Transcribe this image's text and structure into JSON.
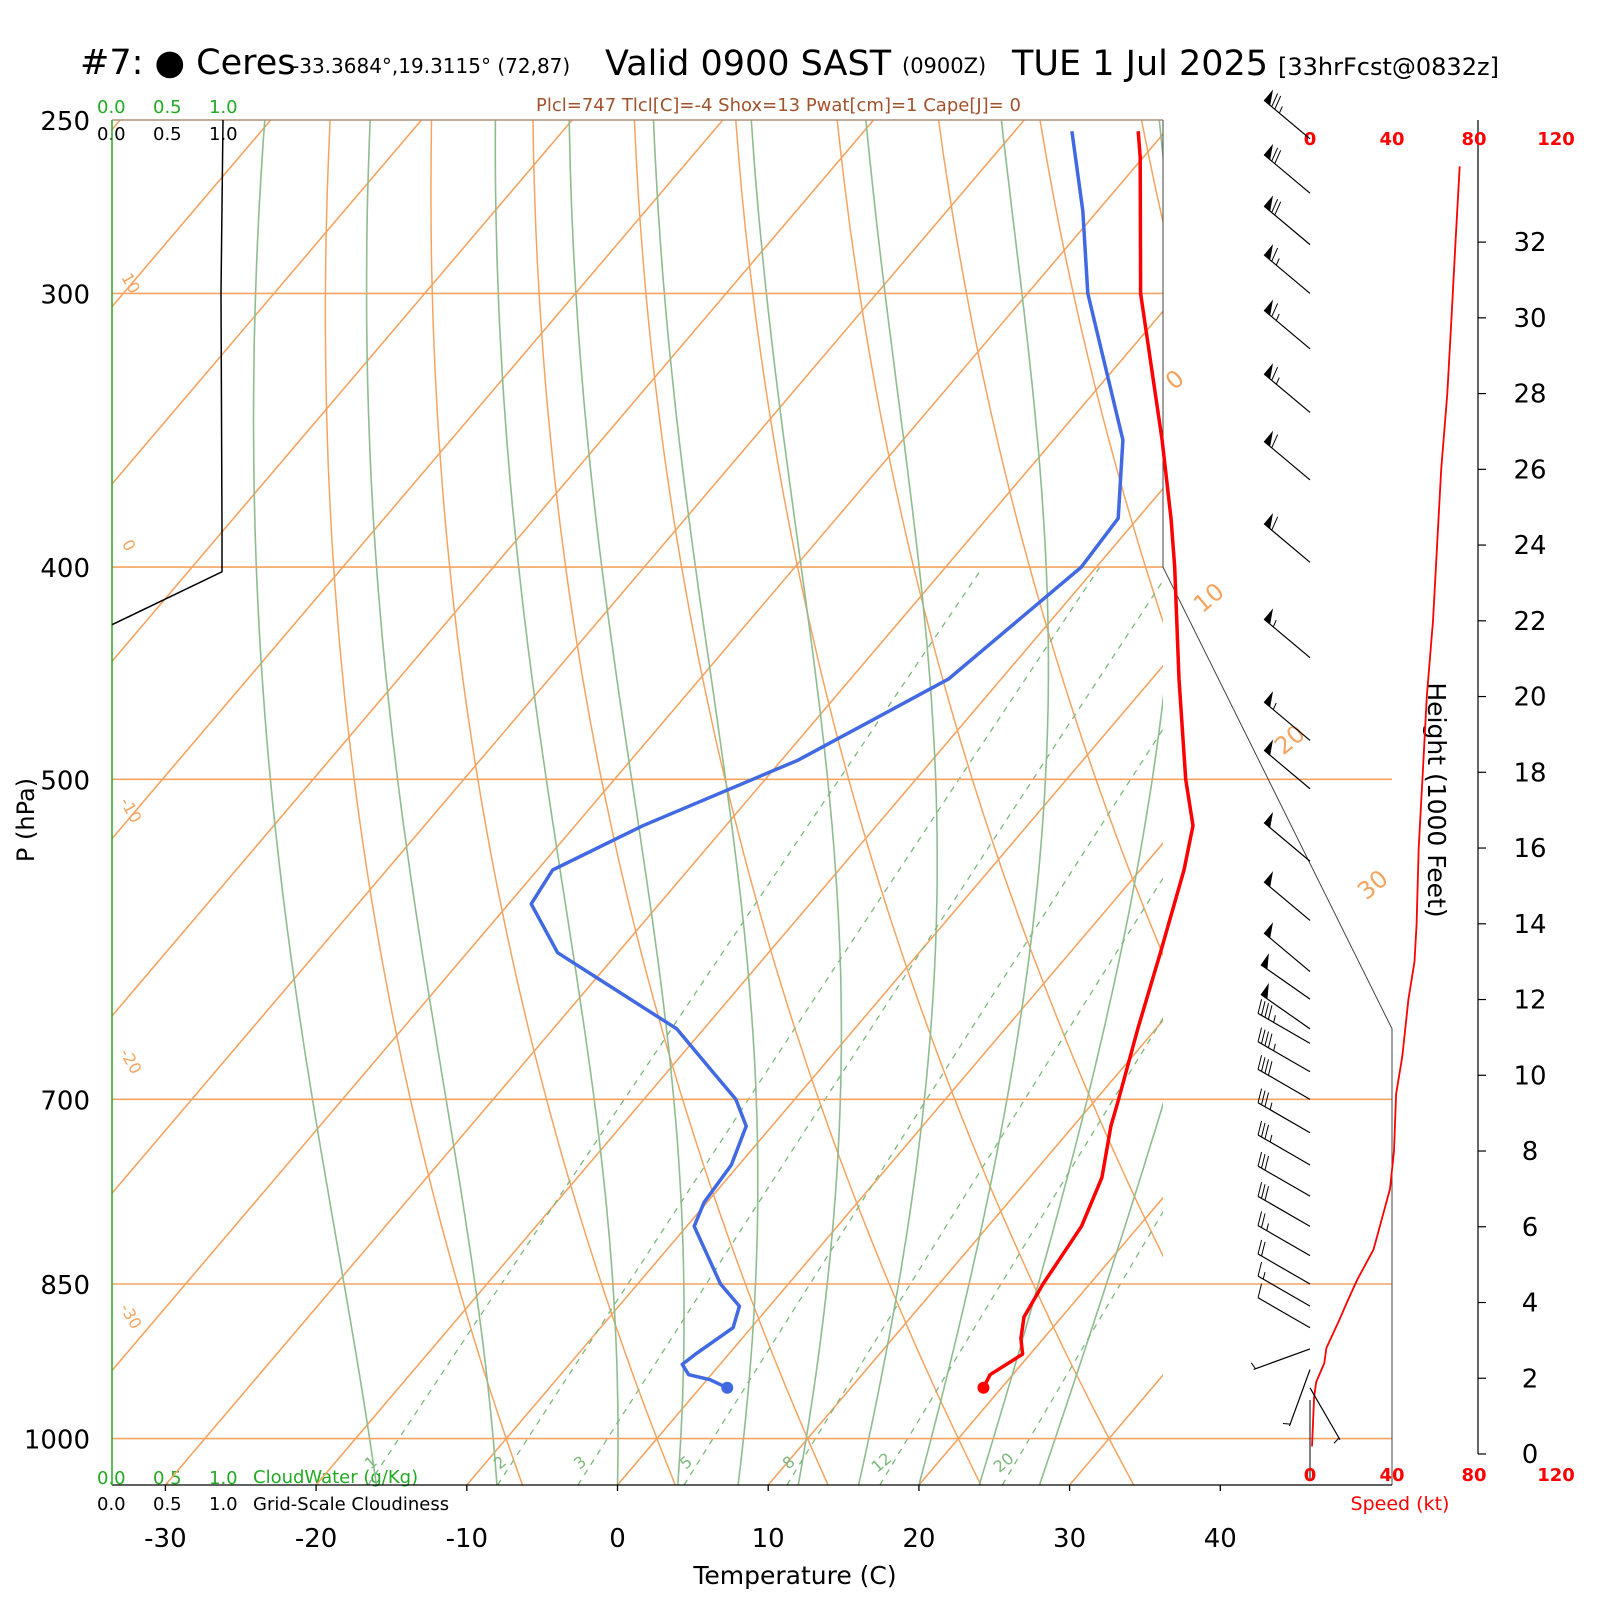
{
  "header": {
    "site_label": "#7:  ● Ceres",
    "coordinates": "-33.3684°,19.3115° (72,87)",
    "valid": "Valid 0900 SAST",
    "valid_z": "(0900Z)",
    "date": "TUE 1 Jul 2025",
    "forecast": "[33hrFcst@0832z]",
    "parcel_params": "Plcl=747 Tlcl[C]=-4 Shox=13 Pwat[cm]=1 Cape[J]= 0"
  },
  "cloud_legend": {
    "cloudwater_ticks": [
      "0.0",
      "0.5",
      "1.0"
    ],
    "cloudiness_ticks": [
      "0.0",
      "0.5",
      "1.0"
    ],
    "cloudwater_label": "CloudWater (g/Kg)",
    "cloudiness_label": "Grid-Scale Cloudiness"
  },
  "colors": {
    "temperature": "#ff0000",
    "dewpoint": "#4169e1",
    "isotherm": "#f4a460",
    "dry_adiabat": "#f4a460",
    "moist_adiabat": "#8fbc8f",
    "mixing_ratio": "#7cb87c",
    "speed": "#ff0000",
    "params_text": "#a0522d",
    "cloudwater": "#22aa22"
  },
  "chart_data": {
    "type": "skew-t",
    "xlabel": "Temperature (C)",
    "ylabel": "P (hPa)",
    "right_ylabel": "Height (1000 Feet)",
    "speed_label": "Speed (kt)",
    "x_ticks": [
      -30,
      -20,
      -10,
      0,
      10,
      20,
      30,
      40
    ],
    "pressure_ticks": [
      250,
      300,
      400,
      500,
      700,
      850,
      1000
    ],
    "pressure_range": [
      250,
      1050
    ],
    "height_ticks": [
      0,
      2,
      4,
      6,
      8,
      10,
      12,
      14,
      16,
      18,
      20,
      22,
      24,
      26,
      28,
      30,
      32
    ],
    "speed_ticks": [
      0,
      40,
      80,
      120
    ],
    "isotherm_labels": [
      "-30",
      "-20",
      "-10",
      "0",
      "10",
      "20",
      "30",
      "0",
      "10",
      "20",
      "30"
    ],
    "mixing_ratio_labels": [
      "1",
      "2",
      "3",
      "5",
      "8",
      "12",
      "20"
    ],
    "mixing_ratios_gkg": [
      1,
      2,
      3,
      5,
      8,
      12,
      20
    ],
    "temperature_profile": [
      {
        "p": 948,
        "t": 18.8
      },
      {
        "p": 935,
        "t": 18.5
      },
      {
        "p": 915,
        "t": 19.5
      },
      {
        "p": 900,
        "t": 18.5
      },
      {
        "p": 880,
        "t": 17.5
      },
      {
        "p": 850,
        "t": 16.9
      },
      {
        "p": 800,
        "t": 16.2
      },
      {
        "p": 760,
        "t": 14.8
      },
      {
        "p": 720,
        "t": 12.5
      },
      {
        "p": 700,
        "t": 11.5
      },
      {
        "p": 650,
        "t": 8.8
      },
      {
        "p": 600,
        "t": 6.0
      },
      {
        "p": 550,
        "t": 2.9
      },
      {
        "p": 525,
        "t": 1.0
      },
      {
        "p": 500,
        "t": -2.1
      },
      {
        "p": 450,
        "t": -8.2
      },
      {
        "p": 400,
        "t": -14.8
      },
      {
        "p": 380,
        "t": -17.8
      },
      {
        "p": 350,
        "t": -22.8
      },
      {
        "p": 300,
        "t": -32.5
      },
      {
        "p": 260,
        "t": -40.2
      },
      {
        "p": 253,
        "t": -41.8
      }
    ],
    "dewpoint_profile": [
      {
        "p": 948,
        "t": 1.8
      },
      {
        "p": 940,
        "t": 0.2
      },
      {
        "p": 935,
        "t": -1.5
      },
      {
        "p": 925,
        "t": -2.5
      },
      {
        "p": 915,
        "t": -2.2
      },
      {
        "p": 890,
        "t": -1.2
      },
      {
        "p": 870,
        "t": -2.0
      },
      {
        "p": 850,
        "t": -4.5
      },
      {
        "p": 800,
        "t": -9.5
      },
      {
        "p": 780,
        "t": -10.2
      },
      {
        "p": 750,
        "t": -10.5
      },
      {
        "p": 720,
        "t": -11.7
      },
      {
        "p": 700,
        "t": -13.9
      },
      {
        "p": 680,
        "t": -17.0
      },
      {
        "p": 650,
        "t": -21.8
      },
      {
        "p": 620,
        "t": -29.0
      },
      {
        "p": 600,
        "t": -34.0
      },
      {
        "p": 570,
        "t": -38.5
      },
      {
        "p": 550,
        "t": -39.0
      },
      {
        "p": 525,
        "t": -35.5
      },
      {
        "p": 490,
        "t": -28.9
      },
      {
        "p": 450,
        "t": -23.5
      },
      {
        "p": 400,
        "t": -21.0
      },
      {
        "p": 380,
        "t": -21.3
      },
      {
        "p": 350,
        "t": -25.4
      },
      {
        "p": 300,
        "t": -36.0
      },
      {
        "p": 275,
        "t": -41.0
      },
      {
        "p": 253,
        "t": -46.2
      }
    ],
    "cloudiness_profile": [
      {
        "p": 250,
        "v": 0.0
      },
      {
        "p": 300,
        "v": 0.0
      },
      {
        "p": 380,
        "v": 0.0
      },
      {
        "p": 400,
        "v": 0.0
      },
      {
        "p": 420,
        "v": 0.0
      }
    ],
    "speed_profile": [
      {
        "h": 0.2,
        "s": 1
      },
      {
        "h": 1.5,
        "s": 2
      },
      {
        "h": 1.9,
        "s": 3
      },
      {
        "h": 2.4,
        "s": 7
      },
      {
        "h": 2.8,
        "s": 8
      },
      {
        "h": 3.5,
        "s": 14
      },
      {
        "h": 4.0,
        "s": 18
      },
      {
        "h": 4.6,
        "s": 23
      },
      {
        "h": 5.4,
        "s": 31
      },
      {
        "h": 6.0,
        "s": 34
      },
      {
        "h": 7.0,
        "s": 39
      },
      {
        "h": 8.0,
        "s": 41
      },
      {
        "h": 9.5,
        "s": 42
      },
      {
        "h": 10.5,
        "s": 45
      },
      {
        "h": 12.0,
        "s": 48
      },
      {
        "h": 13.0,
        "s": 51
      },
      {
        "h": 14.0,
        "s": 52
      },
      {
        "h": 16.0,
        "s": 53
      },
      {
        "h": 18.0,
        "s": 55
      },
      {
        "h": 20.0,
        "s": 57
      },
      {
        "h": 22.0,
        "s": 60
      },
      {
        "h": 24.0,
        "s": 62
      },
      {
        "h": 26.0,
        "s": 64
      },
      {
        "h": 28.0,
        "s": 67
      },
      {
        "h": 30.0,
        "s": 69
      },
      {
        "h": 32.0,
        "s": 71
      },
      {
        "h": 34.0,
        "s": 73
      }
    ],
    "wind_barbs": [
      {
        "p": 255,
        "dir": 310,
        "kt": 75
      },
      {
        "p": 270,
        "dir": 310,
        "kt": 70
      },
      {
        "p": 285,
        "dir": 310,
        "kt": 70
      },
      {
        "p": 300,
        "dir": 310,
        "kt": 65
      },
      {
        "p": 318,
        "dir": 310,
        "kt": 65
      },
      {
        "p": 340,
        "dir": 310,
        "kt": 65
      },
      {
        "p": 365,
        "dir": 310,
        "kt": 60
      },
      {
        "p": 398,
        "dir": 310,
        "kt": 60
      },
      {
        "p": 440,
        "dir": 310,
        "kt": 55
      },
      {
        "p": 480,
        "dir": 310,
        "kt": 55
      },
      {
        "p": 505,
        "dir": 310,
        "kt": 50
      },
      {
        "p": 545,
        "dir": 310,
        "kt": 50
      },
      {
        "p": 580,
        "dir": 310,
        "kt": 50
      },
      {
        "p": 612,
        "dir": 310,
        "kt": 50
      },
      {
        "p": 630,
        "dir": 305,
        "kt": 50
      },
      {
        "p": 650,
        "dir": 305,
        "kt": 50
      },
      {
        "p": 660,
        "dir": 300,
        "kt": 45
      },
      {
        "p": 680,
        "dir": 300,
        "kt": 45
      },
      {
        "p": 700,
        "dir": 300,
        "kt": 40
      },
      {
        "p": 725,
        "dir": 300,
        "kt": 35
      },
      {
        "p": 750,
        "dir": 300,
        "kt": 35
      },
      {
        "p": 775,
        "dir": 300,
        "kt": 30
      },
      {
        "p": 800,
        "dir": 300,
        "kt": 30
      },
      {
        "p": 825,
        "dir": 300,
        "kt": 25
      },
      {
        "p": 850,
        "dir": 300,
        "kt": 20
      },
      {
        "p": 870,
        "dir": 300,
        "kt": 15
      },
      {
        "p": 890,
        "dir": 300,
        "kt": 10
      },
      {
        "p": 910,
        "dir": 250,
        "kt": 5
      },
      {
        "p": 930,
        "dir": 200,
        "kt": 5
      },
      {
        "p": 948,
        "dir": 150,
        "kt": 5
      }
    ]
  }
}
